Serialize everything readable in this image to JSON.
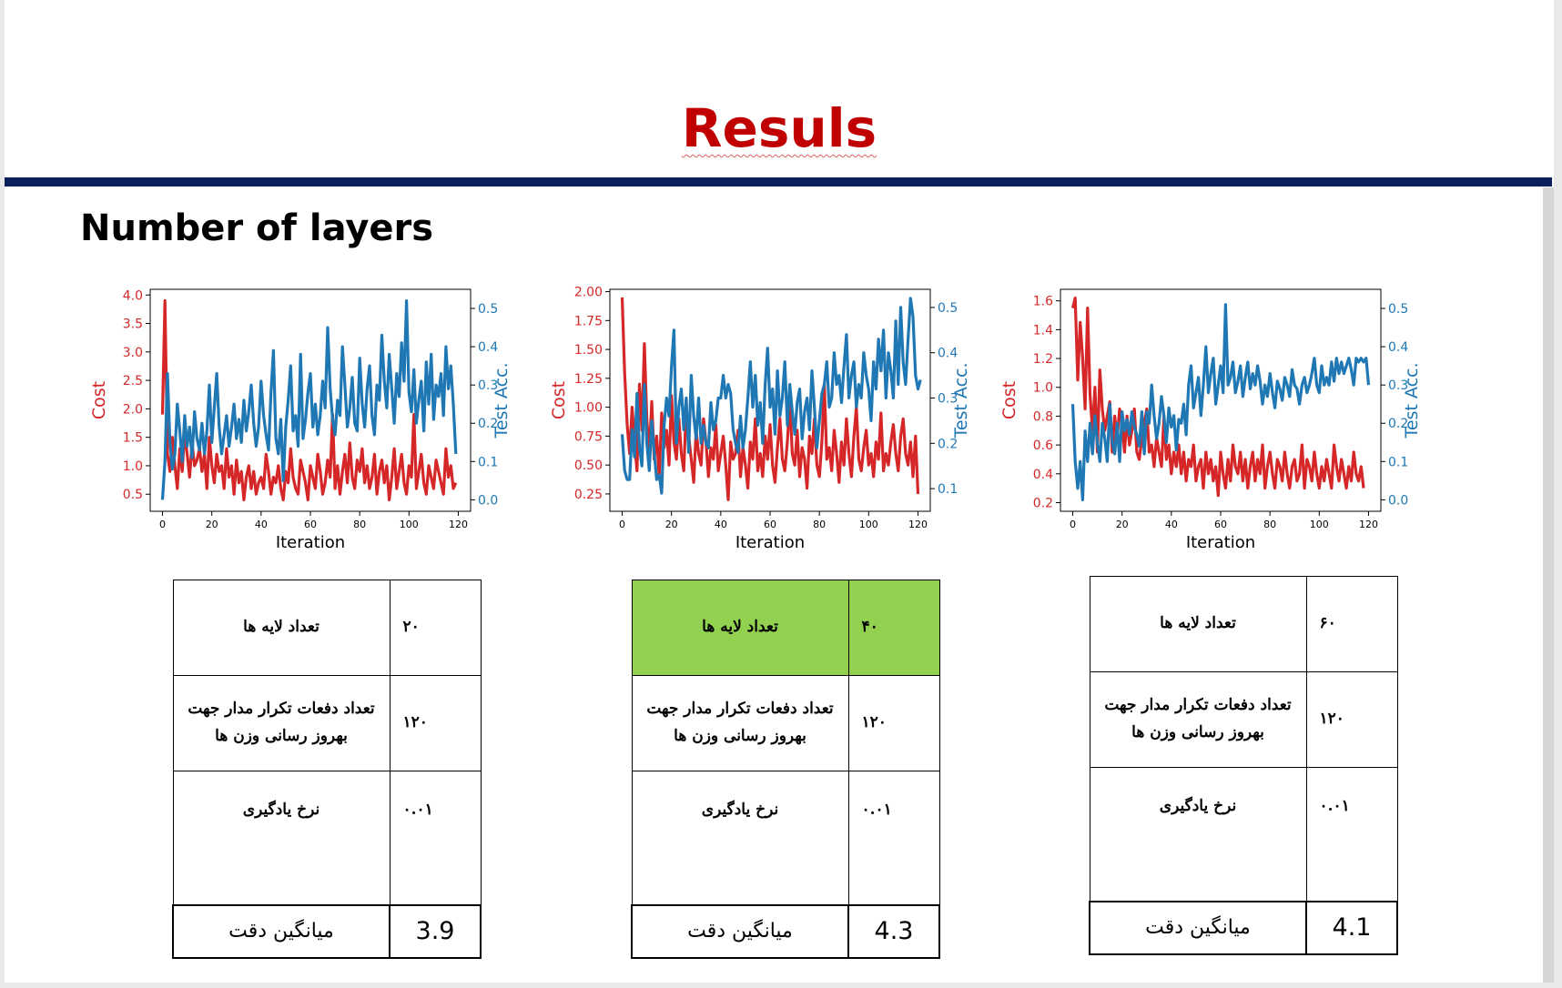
{
  "title": "Resuls",
  "subtitle": "Number of layers",
  "colors": {
    "cost": "#d62728",
    "acc": "#1f77b4",
    "title": "#c00000",
    "rule": "#0a1f5c",
    "highlight": "#92d050"
  },
  "chart_data": [
    {
      "type": "line",
      "xlabel": "Iteration",
      "ylabel": "Cost",
      "y2label": "Test Acc.",
      "xlim": [
        -5,
        125
      ],
      "ylim": [
        0.2,
        4.1
      ],
      "y2lim": [
        -0.03,
        0.55
      ],
      "xticks": [
        "0",
        "20",
        "40",
        "60",
        "80",
        "100",
        "120"
      ],
      "yticks": [
        "0.5",
        "1.0",
        "1.5",
        "2.0",
        "2.5",
        "3.0",
        "3.5",
        "4.0"
      ],
      "y2ticks": [
        "0.0",
        "0.1",
        "0.2",
        "0.3",
        "0.4",
        "0.5"
      ],
      "series": [
        {
          "axis": "left",
          "values": [
            1.9,
            3.9,
            1.2,
            0.9,
            1.5,
            1.0,
            0.6,
            1.3,
            0.9,
            1.6,
            1.2,
            0.8,
            1.4,
            1.0,
            1.1,
            1.3,
            0.9,
            1.2,
            0.6,
            1.5,
            1.0,
            0.7,
            1.2,
            0.9,
            1.0,
            0.6,
            1.3,
            0.8,
            1.0,
            0.5,
            1.1,
            0.7,
            0.9,
            0.4,
            0.8,
            1.0,
            0.6,
            0.9,
            0.5,
            0.7,
            0.8,
            0.6,
            1.2,
            0.9,
            0.5,
            0.8,
            0.7,
            1.0,
            0.6,
            0.4,
            0.9,
            0.7,
            1.3,
            0.8,
            0.6,
            0.5,
            1.1,
            0.9,
            0.7,
            0.4,
            1.0,
            0.8,
            0.6,
            1.2,
            0.9,
            0.5,
            0.7,
            1.1,
            0.8,
            1.9,
            0.6,
            1.0,
            0.5,
            0.9,
            1.2,
            0.7,
            1.4,
            0.8,
            0.6,
            1.1,
            0.9,
            1.3,
            0.7,
            1.0,
            0.6,
            0.8,
            1.2,
            0.5,
            0.9,
            1.1,
            0.7,
            1.0,
            0.4,
            0.8,
            1.3,
            0.6,
            0.9,
            1.2,
            0.7,
            0.5,
            1.0,
            0.8,
            1.9,
            0.6,
            0.9,
            1.2,
            0.7,
            0.5,
            1.0,
            0.8,
            0.6,
            1.1,
            0.9,
            0.7,
            0.5,
            1.3,
            0.8,
            1.0,
            0.6,
            0.7
          ]
        },
        {
          "axis": "right",
          "values": [
            0.0,
            0.1,
            0.33,
            0.15,
            0.08,
            0.12,
            0.25,
            0.18,
            0.1,
            0.22,
            0.14,
            0.19,
            0.11,
            0.23,
            0.16,
            0.13,
            0.2,
            0.12,
            0.18,
            0.3,
            0.15,
            0.24,
            0.33,
            0.19,
            0.12,
            0.17,
            0.22,
            0.14,
            0.19,
            0.25,
            0.16,
            0.21,
            0.15,
            0.26,
            0.18,
            0.23,
            0.3,
            0.2,
            0.14,
            0.19,
            0.31,
            0.22,
            0.17,
            0.13,
            0.28,
            0.39,
            0.16,
            0.12,
            0.21,
            0.05,
            0.19,
            0.26,
            0.35,
            0.18,
            0.22,
            0.14,
            0.38,
            0.16,
            0.21,
            0.28,
            0.33,
            0.19,
            0.25,
            0.17,
            0.22,
            0.31,
            0.24,
            0.45,
            0.29,
            0.21,
            0.17,
            0.26,
            0.22,
            0.4,
            0.3,
            0.19,
            0.24,
            0.32,
            0.2,
            0.18,
            0.37,
            0.25,
            0.19,
            0.29,
            0.35,
            0.22,
            0.17,
            0.3,
            0.26,
            0.43,
            0.31,
            0.24,
            0.38,
            0.29,
            0.2,
            0.33,
            0.27,
            0.41,
            0.31,
            0.52,
            0.28,
            0.23,
            0.34,
            0.2,
            0.26,
            0.31,
            0.18,
            0.36,
            0.25,
            0.38,
            0.21,
            0.3,
            0.27,
            0.33,
            0.22,
            0.4,
            0.29,
            0.35,
            0.25,
            0.12
          ]
        }
      ]
    },
    {
      "type": "line",
      "xlabel": "Iteration",
      "ylabel": "Cost",
      "y2label": "Test Acc.",
      "xlim": [
        -5,
        125
      ],
      "ylim": [
        0.1,
        2.02
      ],
      "y2lim": [
        0.05,
        0.54
      ],
      "xticks": [
        "0",
        "20",
        "40",
        "60",
        "80",
        "100",
        "120"
      ],
      "yticks": [
        "0.25",
        "0.50",
        "0.75",
        "1.00",
        "1.25",
        "1.50",
        "1.75",
        "2.00"
      ],
      "y2ticks": [
        "0.1",
        "0.2",
        "0.3",
        "0.4",
        "0.5"
      ],
      "series": [
        {
          "axis": "left",
          "values": [
            1.95,
            1.3,
            0.85,
            0.6,
            1.0,
            0.7,
            0.45,
            1.2,
            0.8,
            1.55,
            0.9,
            0.6,
            1.05,
            0.55,
            0.75,
            0.4,
            0.95,
            0.65,
            0.8,
            0.5,
            1.1,
            0.7,
            0.55,
            0.9,
            0.6,
            0.45,
            1.0,
            0.75,
            0.55,
            0.35,
            0.8,
            0.6,
            0.5,
            0.9,
            0.7,
            0.4,
            0.65,
            0.55,
            0.85,
            0.45,
            0.6,
            0.75,
            0.5,
            0.2,
            0.7,
            0.55,
            0.6,
            0.8,
            0.4,
            0.65,
            0.5,
            0.3,
            0.7,
            0.55,
            0.9,
            0.45,
            0.6,
            0.4,
            0.75,
            0.55,
            0.85,
            0.5,
            0.35,
            0.65,
            0.9,
            0.55,
            0.45,
            0.7,
            1.05,
            0.6,
            0.5,
            0.8,
            0.4,
            0.65,
            0.55,
            0.3,
            0.75,
            0.6,
            0.9,
            0.5,
            0.4,
            0.7,
            1.2,
            0.55,
            0.65,
            0.45,
            0.8,
            0.6,
            0.35,
            0.7,
            0.5,
            0.9,
            0.6,
            0.4,
            0.75,
            1.0,
            0.55,
            0.45,
            0.65,
            0.8,
            0.5,
            0.6,
            0.4,
            0.7,
            0.55,
            0.95,
            0.45,
            0.6,
            0.5,
            0.7,
            0.85,
            0.6,
            0.45,
            0.75,
            0.9,
            0.6,
            0.5,
            0.7,
            0.4,
            0.75,
            0.25
          ]
        },
        {
          "axis": "right",
          "values": [
            0.22,
            0.14,
            0.12,
            0.12,
            0.23,
            0.17,
            0.31,
            0.19,
            0.15,
            0.33,
            0.2,
            0.14,
            0.25,
            0.18,
            0.12,
            0.13,
            0.09,
            0.24,
            0.3,
            0.26,
            0.37,
            0.45,
            0.2,
            0.28,
            0.32,
            0.23,
            0.3,
            0.18,
            0.35,
            0.26,
            0.21,
            0.3,
            0.2,
            0.24,
            0.2,
            0.19,
            0.29,
            0.23,
            0.25,
            0.3,
            0.3,
            0.35,
            0.3,
            0.33,
            0.31,
            0.23,
            0.2,
            0.18,
            0.26,
            0.19,
            0.23,
            0.3,
            0.38,
            0.28,
            0.35,
            0.24,
            0.29,
            0.2,
            0.33,
            0.41,
            0.28,
            0.32,
            0.22,
            0.36,
            0.26,
            0.3,
            0.38,
            0.24,
            0.33,
            0.27,
            0.22,
            0.29,
            0.32,
            0.21,
            0.27,
            0.3,
            0.23,
            0.36,
            0.28,
            0.19,
            0.25,
            0.31,
            0.33,
            0.38,
            0.28,
            0.3,
            0.4,
            0.33,
            0.35,
            0.29,
            0.37,
            0.44,
            0.3,
            0.35,
            0.38,
            0.28,
            0.33,
            0.3,
            0.4,
            0.35,
            0.32,
            0.25,
            0.38,
            0.32,
            0.43,
            0.36,
            0.45,
            0.3,
            0.4,
            0.36,
            0.3,
            0.47,
            0.33,
            0.5,
            0.38,
            0.33,
            0.43,
            0.52,
            0.48,
            0.35,
            0.32,
            0.34
          ]
        }
      ]
    },
    {
      "type": "line",
      "xlabel": "Iteration",
      "ylabel": "Cost",
      "y2label": "Test Acc.",
      "xlim": [
        -5,
        125
      ],
      "ylim": [
        0.14,
        1.68
      ],
      "y2lim": [
        -0.03,
        0.55
      ],
      "xticks": [
        "0",
        "20",
        "40",
        "60",
        "80",
        "100",
        "120"
      ],
      "yticks": [
        "0.2",
        "0.4",
        "0.6",
        "0.8",
        "1.0",
        "1.2",
        "1.4",
        "1.6"
      ],
      "y2ticks": [
        "0.0",
        "0.1",
        "0.2",
        "0.3",
        "0.4",
        "0.5"
      ],
      "series": [
        {
          "axis": "left",
          "values": [
            1.55,
            1.62,
            1.05,
            1.45,
            1.2,
            0.85,
            1.55,
            0.95,
            0.7,
            1.0,
            0.55,
            1.12,
            0.85,
            0.7,
            0.8,
            0.9,
            0.55,
            0.8,
            0.65,
            0.85,
            0.75,
            0.55,
            0.8,
            0.6,
            0.7,
            0.85,
            0.55,
            0.5,
            0.65,
            0.75,
            0.85,
            0.55,
            0.6,
            0.45,
            0.65,
            0.55,
            0.45,
            0.8,
            0.5,
            0.6,
            0.4,
            0.55,
            0.45,
            0.6,
            0.4,
            0.55,
            0.35,
            0.5,
            0.45,
            0.6,
            0.35,
            0.45,
            0.5,
            0.3,
            0.55,
            0.4,
            0.5,
            0.35,
            0.45,
            0.25,
            0.55,
            0.4,
            0.3,
            0.5,
            0.35,
            0.6,
            0.45,
            0.4,
            0.55,
            0.35,
            0.5,
            0.3,
            0.45,
            0.55,
            0.35,
            0.5,
            0.4,
            0.6,
            0.3,
            0.45,
            0.55,
            0.4,
            0.3,
            0.5,
            0.45,
            0.35,
            0.55,
            0.4,
            0.3,
            0.45,
            0.5,
            0.35,
            0.4,
            0.6,
            0.3,
            0.5,
            0.45,
            0.35,
            0.55,
            0.4,
            0.3,
            0.45,
            0.35,
            0.5,
            0.4,
            0.3,
            0.6,
            0.45,
            0.35,
            0.5,
            0.4,
            0.3,
            0.45,
            0.35,
            0.55,
            0.4,
            0.35,
            0.45,
            0.3
          ]
        },
        {
          "axis": "right",
          "values": [
            0.25,
            0.1,
            0.03,
            0.1,
            0.0,
            0.18,
            0.1,
            0.2,
            0.12,
            0.22,
            0.15,
            0.1,
            0.2,
            0.16,
            0.1,
            0.25,
            0.15,
            0.12,
            0.2,
            0.1,
            0.23,
            0.18,
            0.21,
            0.17,
            0.23,
            0.19,
            0.17,
            0.14,
            0.23,
            0.12,
            0.23,
            0.2,
            0.3,
            0.22,
            0.16,
            0.2,
            0.27,
            0.22,
            0.15,
            0.24,
            0.19,
            0.22,
            0.13,
            0.21,
            0.2,
            0.25,
            0.17,
            0.3,
            0.35,
            0.24,
            0.28,
            0.32,
            0.22,
            0.3,
            0.4,
            0.28,
            0.33,
            0.37,
            0.25,
            0.3,
            0.35,
            0.28,
            0.51,
            0.3,
            0.32,
            0.36,
            0.28,
            0.31,
            0.35,
            0.27,
            0.32,
            0.36,
            0.29,
            0.33,
            0.3,
            0.35,
            0.31,
            0.25,
            0.3,
            0.27,
            0.33,
            0.28,
            0.24,
            0.31,
            0.29,
            0.26,
            0.32,
            0.3,
            0.27,
            0.34,
            0.3,
            0.29,
            0.25,
            0.3,
            0.32,
            0.28,
            0.3,
            0.33,
            0.37,
            0.3,
            0.28,
            0.35,
            0.3,
            0.32,
            0.3,
            0.36,
            0.31,
            0.37,
            0.33,
            0.36,
            0.33,
            0.35,
            0.37,
            0.34,
            0.3,
            0.37,
            0.36,
            0.37,
            0.36,
            0.37,
            0.3
          ]
        }
      ]
    }
  ],
  "tables": [
    {
      "rows": [
        {
          "label": "تعداد لایه ها",
          "value": "۲۰"
        },
        {
          "label": "تعداد دفعات  تکرار مدار جهت بهروز رسانی وزن ها",
          "value": "۱۲۰"
        },
        {
          "label": "نرخ یادگیری",
          "value": "۰.۰۱"
        },
        {
          "label": "میانگین دقت",
          "value": "3.9"
        }
      ]
    },
    {
      "rows": [
        {
          "label": "تعداد لایه ها",
          "value": "۴۰"
        },
        {
          "label": "تعداد دفعات  تکرار مدار جهت بهروز رسانی وزن ها",
          "value": "۱۲۰"
        },
        {
          "label": "نرخ یادگیری",
          "value": "۰.۰۱"
        },
        {
          "label": "میانگین دقت",
          "value": "4.3"
        }
      ]
    },
    {
      "rows": [
        {
          "label": "تعداد لایه ها",
          "value": "۶۰"
        },
        {
          "label": "تعداد دفعات  تکرار مدار جهت بهروز رسانی وزن ها",
          "value": "۱۲۰"
        },
        {
          "label": "نرخ یادگیری",
          "value": "۰.۰۱"
        },
        {
          "label": "میانگین دقت",
          "value": "4.1"
        }
      ]
    }
  ]
}
